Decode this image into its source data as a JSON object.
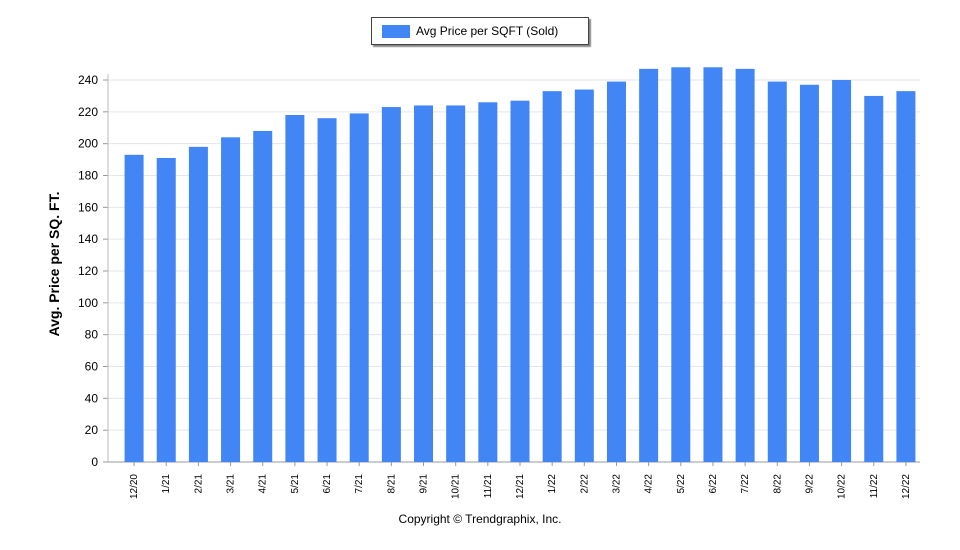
{
  "chart_data": {
    "type": "bar",
    "categories": [
      "12/20",
      "1/21",
      "2/21",
      "3/21",
      "4/21",
      "5/21",
      "6/21",
      "7/21",
      "8/21",
      "9/21",
      "10/21",
      "11/21",
      "12/21",
      "1/22",
      "2/22",
      "3/22",
      "4/22",
      "5/22",
      "6/22",
      "7/22",
      "8/22",
      "9/22",
      "10/22",
      "11/22",
      "12/22"
    ],
    "series": [
      {
        "name": "Avg Price per SQFT (Sold)",
        "values": [
          193,
          191,
          198,
          204,
          208,
          218,
          216,
          219,
          223,
          224,
          224,
          226,
          227,
          233,
          234,
          239,
          247,
          248,
          248,
          247,
          239,
          237,
          240,
          230,
          233
        ],
        "color": "#4285f4"
      }
    ],
    "ylabel": "Avg. Price per SQ. FT.",
    "xlabel": "",
    "ylim": [
      0,
      240
    ],
    "yticks": [
      0,
      20,
      40,
      60,
      80,
      100,
      120,
      140,
      160,
      180,
      200,
      220,
      240
    ],
    "grid": true,
    "legend": "top-center"
  },
  "footer": {
    "copyright": "Copyright © Trendgraphix, Inc."
  }
}
